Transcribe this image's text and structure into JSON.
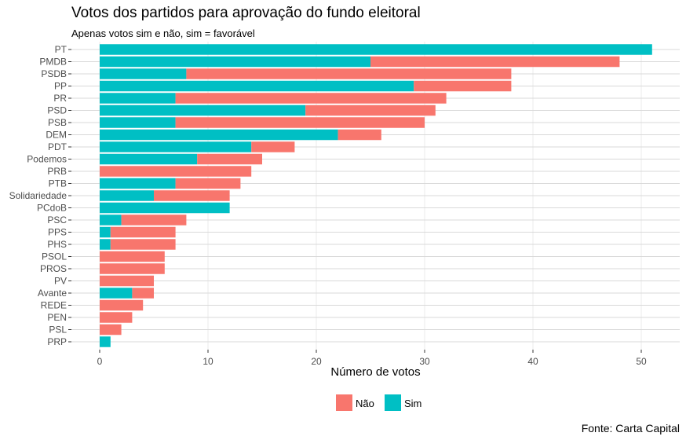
{
  "chart_data": {
    "type": "bar",
    "orientation": "horizontal",
    "stacked": true,
    "title": "Votos dos partidos para aprovação do fundo eleitoral",
    "subtitle": "Apenas votos sim e não, sim = favorável",
    "caption": "Fonte: Carta Capital",
    "xlabel": "Número de votos",
    "ylabel": "",
    "xlim": [
      0,
      51
    ],
    "xticks": [
      0,
      10,
      20,
      30,
      40,
      50
    ],
    "grid": true,
    "legend_position": "bottom",
    "categories": [
      "PT",
      "PMDB",
      "PSDB",
      "PP",
      "PR",
      "PSD",
      "PSB",
      "DEM",
      "PDT",
      "Podemos",
      "PRB",
      "PTB",
      "Solidariedade",
      "PCdoB",
      "PSC",
      "PPS",
      "PHS",
      "PSOL",
      "PROS",
      "PV",
      "Avante",
      "REDE",
      "PEN",
      "PSL",
      "PRP"
    ],
    "series": [
      {
        "name": "Sim",
        "color": "#00BFC4",
        "values": [
          51,
          25,
          8,
          29,
          7,
          19,
          7,
          22,
          14,
          9,
          0,
          7,
          5,
          12,
          2,
          1,
          1,
          0,
          0,
          0,
          3,
          0,
          0,
          0,
          1
        ]
      },
      {
        "name": "Não",
        "color": "#F8766D",
        "values": [
          0,
          23,
          30,
          9,
          25,
          12,
          23,
          4,
          4,
          6,
          14,
          6,
          7,
          0,
          6,
          6,
          6,
          6,
          6,
          5,
          2,
          4,
          3,
          2,
          0
        ]
      }
    ],
    "legend_order": [
      "Não",
      "Sim"
    ]
  }
}
